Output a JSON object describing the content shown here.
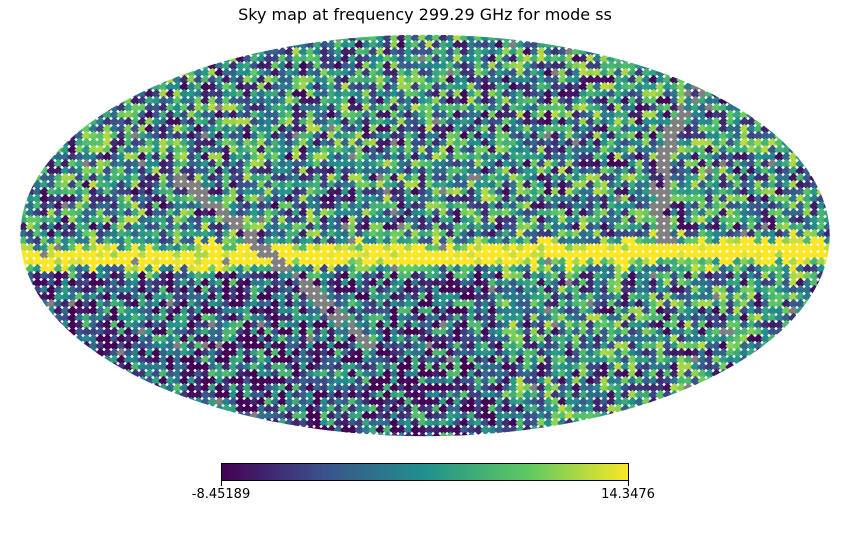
{
  "title": "Sky map at frequency 299.29 GHz for mode ss",
  "map": {
    "projection": "mollweide",
    "colormap": [
      "#440154",
      "#3b528b",
      "#21918c",
      "#5ec962",
      "#fde725"
    ],
    "mask_color": "#808080"
  },
  "colorbar": {
    "min_label": "-8.45189",
    "max_label": "14.3476",
    "min": -8.45189,
    "max": 14.3476
  }
}
